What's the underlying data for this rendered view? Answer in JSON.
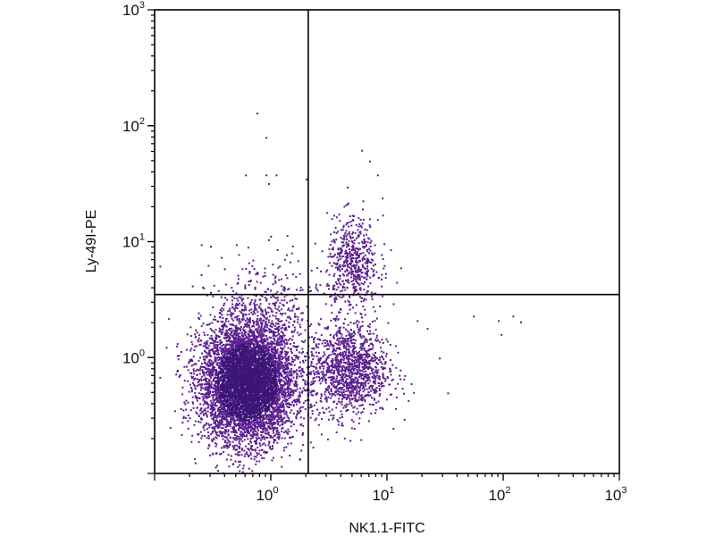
{
  "chart_data": {
    "type": "scatter",
    "title": "",
    "xlabel": "NK1.1-FITC",
    "ylabel": "Ly-49I-PE",
    "xscale": "log",
    "yscale": "log",
    "xlim": [
      0.1,
      1000
    ],
    "ylim": [
      0.1,
      1000
    ],
    "xticks": [
      {
        "base": "10",
        "exp": "0",
        "value": 1
      },
      {
        "base": "10",
        "exp": "1",
        "value": 10
      },
      {
        "base": "10",
        "exp": "2",
        "value": 100
      },
      {
        "base": "10",
        "exp": "3",
        "value": 1000
      }
    ],
    "yticks": [
      {
        "base": "10",
        "exp": "0",
        "value": 1
      },
      {
        "base": "10",
        "exp": "1",
        "value": 10
      },
      {
        "base": "10",
        "exp": "2",
        "value": 100
      },
      {
        "base": "10",
        "exp": "3",
        "value": 1000
      }
    ],
    "grid": false,
    "legend": "none",
    "quadrant_gates": {
      "x": 2.1,
      "y": 3.5
    },
    "point_color": "#5b1f8f",
    "dense_color": "#3d1577",
    "populations": [
      {
        "label_shown": false,
        "center": [
          0.62,
          0.62
        ],
        "log_sd": [
          0.2,
          0.26
        ],
        "count": 6500
      },
      {
        "label_shown": false,
        "center": [
          4.6,
          0.8
        ],
        "log_sd": [
          0.17,
          0.2
        ],
        "count": 1300
      },
      {
        "label_shown": false,
        "center": [
          5.0,
          6.5
        ],
        "log_sd": [
          0.11,
          0.2
        ],
        "count": 550
      },
      {
        "label_shown": false,
        "center": [
          0.9,
          2.8
        ],
        "log_sd": [
          0.22,
          0.22
        ],
        "count": 300
      }
    ],
    "outliers": [
      [
        0.75,
        130
      ],
      [
        0.9,
        80
      ],
      [
        0.6,
        38
      ],
      [
        0.9,
        38
      ],
      [
        1.1,
        38
      ],
      [
        0.95,
        32
      ],
      [
        2.0,
        35
      ],
      [
        6.0,
        62
      ],
      [
        7.0,
        50
      ],
      [
        8.2,
        38
      ],
      [
        9,
        24
      ],
      [
        55,
        2.3
      ],
      [
        90,
        2.1
      ],
      [
        120,
        2.3
      ],
      [
        140,
        2.05
      ],
      [
        95,
        1.6
      ],
      [
        28,
        1.0
      ],
      [
        33,
        0.5
      ],
      [
        0.11,
        6.2
      ],
      [
        0.3,
        9.2
      ],
      [
        0.25,
        9.5
      ],
      [
        0.5,
        9.5
      ],
      [
        13,
        6
      ],
      [
        12,
        4.5
      ],
      [
        16,
        0.6
      ],
      [
        22,
        1.8
      ],
      [
        18,
        2.1
      ]
    ]
  }
}
